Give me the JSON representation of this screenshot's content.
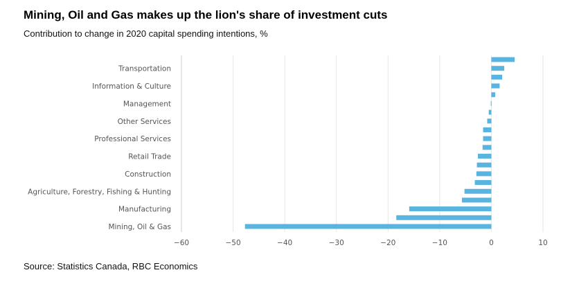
{
  "chart_data": {
    "type": "bar",
    "orientation": "horizontal",
    "title": "Mining, Oil and Gas makes up the lion's share of investment cuts",
    "subtitle": "Contribution to change in 2020 capital spending intentions, %",
    "source": "Source: Statistics Canada, RBC Economics",
    "categories": [
      "",
      "Transportation",
      "",
      "Information & Culture",
      "",
      "Management",
      "",
      "Other Services",
      "",
      "Professional Services",
      "",
      "Retail Trade",
      "",
      "Construction",
      "",
      "Agriculture, Forestry, Fishing & Hunting",
      "",
      "Manufacturing",
      "",
      "Mining, Oil & Gas"
    ],
    "values": [
      4.5,
      2.5,
      2.1,
      1.6,
      0.75,
      -0.1,
      -0.5,
      -0.8,
      -1.6,
      -1.6,
      -1.7,
      -2.6,
      -2.8,
      -2.9,
      -3.2,
      -5.2,
      -5.7,
      -15.9,
      -18.4,
      -47.7
    ],
    "xlim": [
      -60,
      10
    ],
    "xticks": [
      -60,
      -50,
      -40,
      -30,
      -20,
      -10,
      0,
      10
    ],
    "xtick_labels": [
      "−60",
      "−50",
      "−40",
      "−30",
      "−20",
      "−10",
      "0",
      "10"
    ],
    "grid": true,
    "bar_color": "#5ab4e0",
    "grid_color": "#e6e6e6"
  }
}
